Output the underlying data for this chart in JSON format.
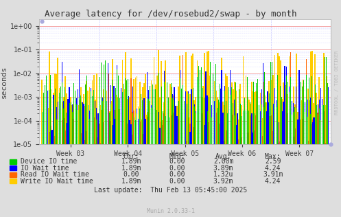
{
  "title": "Average latency for /dev/rosebud2/swap - by month",
  "ylabel": "seconds",
  "watermark": "RRDTOOL / TOBI OETIKER",
  "footer": "Munin 2.0.33-1",
  "last_update": "Last update:  Thu Feb 13 05:45:00 2025",
  "bg_color": "#dedede",
  "plot_bg_color": "#ffffff",
  "grid_color_major": "#f08080",
  "grid_color_minor": "#c8c8ff",
  "xtick_labels": [
    "Week 03",
    "Week 04",
    "Week 05",
    "Week 06",
    "Week 07"
  ],
  "legend": [
    {
      "label": "Device IO time",
      "color": "#00cc00",
      "cur": "1.89m",
      "min": "0.00",
      "avg": "2.00m",
      "max": "2.59"
    },
    {
      "label": "IO Wait time",
      "color": "#0000ff",
      "cur": "1.89m",
      "min": "0.00",
      "avg": "3.89m",
      "max": "4.24"
    },
    {
      "label": "Read IO Wait time",
      "color": "#ff6600",
      "cur": "0.00",
      "min": "0.00",
      "avg": "1.32u",
      "max": "3.91m"
    },
    {
      "label": "Write IO Wait time",
      "color": "#ffcc00",
      "cur": "1.89m",
      "min": "0.00",
      "avg": "3.92m",
      "max": "4.24"
    }
  ],
  "series_colors": [
    "#00cc00",
    "#0000ff",
    "#ff6600",
    "#ffcc00"
  ],
  "n_bars": 200
}
